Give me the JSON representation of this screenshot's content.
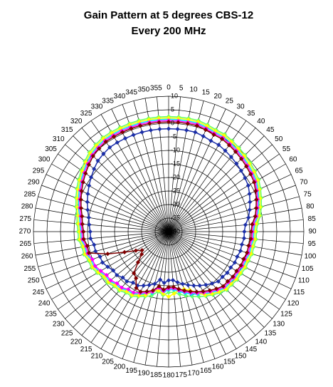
{
  "chart_data": {
    "type": "radar",
    "title": "Gain Pattern at 5 degrees CBS-12",
    "subtitle": "Every 200 MHz",
    "categories": [
      0,
      5,
      10,
      15,
      20,
      25,
      30,
      35,
      40,
      45,
      50,
      55,
      60,
      65,
      70,
      75,
      80,
      85,
      90,
      95,
      100,
      105,
      110,
      115,
      120,
      125,
      130,
      135,
      140,
      145,
      150,
      155,
      160,
      165,
      170,
      175,
      180,
      185,
      190,
      195,
      200,
      205,
      210,
      215,
      220,
      225,
      230,
      235,
      240,
      245,
      250,
      255,
      260,
      265,
      270,
      275,
      280,
      285,
      290,
      295,
      300,
      305,
      310,
      315,
      320,
      325,
      330,
      335,
      340,
      345,
      350,
      355
    ],
    "rlim": [
      -40,
      10
    ],
    "rticks": [
      10,
      5,
      0,
      -5,
      -10,
      -15,
      -20,
      -25,
      -30,
      -35,
      -40
    ],
    "grid": true,
    "series": [
      {
        "color": "#66ff66",
        "values": [
          2.5,
          2.5,
          2.5,
          2.5,
          2,
          1.5,
          1.5,
          1,
          0.5,
          0,
          -0.5,
          -1,
          -1.5,
          -2.5,
          -3.5,
          -4.5,
          -5.5,
          -7,
          -7.5,
          -7.5,
          -8,
          -8,
          -8.5,
          -8.5,
          -9,
          -9,
          -9.5,
          -9.5,
          -10.5,
          -11.5,
          -12.5,
          -13.5,
          -14.5,
          -15.5,
          -16.5,
          -17.5,
          -17.5,
          -16.5,
          -17.5,
          -15.5,
          -14.5,
          -13.5,
          -12.5,
          -12.5,
          -11.5,
          -11.5,
          -10.5,
          -10.5,
          -9.5,
          -8.5,
          -8.5,
          -7.5,
          -7.5,
          -6.5,
          -6.5,
          -6,
          -5.5,
          -4.5,
          -3.5,
          -2.5,
          -1.5,
          -0.5,
          0.5,
          1.5,
          2,
          2.5,
          2.5,
          2.5,
          2.5,
          2.5,
          2.5,
          2.5
        ]
      },
      {
        "color": "#00e5ff",
        "values": [
          1.5,
          1.5,
          1.5,
          1.5,
          1,
          0.5,
          0.5,
          0,
          -0.5,
          -1,
          -1.5,
          -2,
          -2.5,
          -3.5,
          -4.5,
          -5.5,
          -6.5,
          -8,
          -8.5,
          -8.5,
          -9,
          -9,
          -9.5,
          -9.5,
          -10,
          -10,
          -10.5,
          -10.5,
          -11.5,
          -12.5,
          -13.5,
          -14.5,
          -15.5,
          -16.5,
          -17.5,
          -18.5,
          -18.5,
          -17.5,
          -18.5,
          -16.5,
          -15.5,
          -14.5,
          -13.5,
          -13.5,
          -12.5,
          -12.5,
          -11.5,
          -11.5,
          -10.5,
          -9.5,
          -9.5,
          -8.5,
          -8.5,
          -7.5,
          -7.5,
          -7,
          -6.5,
          -5.5,
          -4.5,
          -3.5,
          -2.5,
          -1.5,
          -0.5,
          0.5,
          1,
          1.5,
          1.5,
          1.5,
          1.5,
          1.5,
          1.5,
          1.5
        ]
      },
      {
        "color": "#ffff00",
        "values": [
          2,
          2,
          2,
          2,
          1.5,
          1,
          1,
          0.5,
          0,
          -0.5,
          -1,
          -1.5,
          -2,
          -3,
          -4,
          -5,
          -6,
          -7.5,
          -8,
          -8,
          -8.5,
          -8.5,
          -9,
          -9,
          -9.5,
          -9.5,
          -10,
          -10,
          -11,
          -12,
          -13,
          -15,
          -17,
          -18,
          -18,
          -17,
          -16,
          -17,
          -18,
          -17,
          -15,
          -14,
          -13,
          -13,
          -12,
          -12,
          -11,
          -11,
          -10,
          -9,
          -9,
          -8,
          -8,
          -7,
          -7,
          -6.5,
          -6,
          -5,
          -4,
          -3,
          -2,
          -1,
          0,
          1,
          1.5,
          2,
          2,
          2,
          2,
          2,
          2,
          2
        ]
      },
      {
        "color": "#ff00ff",
        "values": [
          1,
          1,
          1,
          1,
          0.5,
          0,
          0,
          -0.5,
          -1,
          -1.5,
          -2,
          -2.5,
          -3,
          -4,
          -5,
          -6,
          -7,
          -8.5,
          -9,
          -9,
          -9.5,
          -9.5,
          -10,
          -10,
          -10.5,
          -10.5,
          -11,
          -11,
          -12,
          -13,
          -14,
          -15,
          -16,
          -17,
          -18,
          -19,
          -19,
          -18,
          -19,
          -17,
          -16,
          -15,
          -14,
          -14,
          -13,
          -13,
          -12,
          -12,
          -11,
          -10,
          -10,
          -9,
          -9,
          -8,
          -8,
          -7.5,
          -7,
          -6,
          -5,
          -4,
          -3,
          -2,
          -1,
          0,
          0.5,
          1,
          1,
          1,
          1,
          1,
          1,
          1
        ]
      },
      {
        "color": "#1c2fa8",
        "values": [
          -2,
          -2,
          -2,
          -2,
          -2.5,
          -3,
          -3,
          -3.5,
          -4,
          -4.5,
          -5,
          -5.5,
          -6,
          -7,
          -8,
          -9,
          -10,
          -11.5,
          -12,
          -12,
          -12.5,
          -12.5,
          -13,
          -13,
          -13.5,
          -13.5,
          -14,
          -14,
          -15,
          -16,
          -17,
          -18,
          -19,
          -20,
          -21,
          -22,
          -22,
          -21,
          -22,
          -20,
          -19,
          -18,
          -17,
          -17,
          -16,
          -16,
          -15,
          -15,
          -14,
          -13,
          -13,
          -12,
          -12,
          -11,
          -11,
          -10.5,
          -10,
          -9,
          -8,
          -7,
          -6,
          -5,
          -4,
          -3,
          -2.5,
          -2,
          -2,
          -2,
          -2,
          -2,
          -2,
          -2
        ]
      },
      {
        "color": "#800000",
        "values": [
          0.5,
          0.5,
          0.5,
          0.5,
          0,
          -0.5,
          -0.5,
          -1,
          -1.5,
          -2,
          -2.5,
          -3,
          -3.5,
          -4.5,
          -5.5,
          -6.5,
          -7.5,
          -9,
          -9.5,
          -9.5,
          -10,
          -10,
          -10.5,
          -10.5,
          -11,
          -11,
          -11.5,
          -11.5,
          -12.5,
          -13.5,
          -14.5,
          -15.5,
          -16.5,
          -17.5,
          -18.5,
          -19.5,
          -19.5,
          -18.5,
          -19.5,
          -17.5,
          -16.5,
          -15.5,
          -16,
          -19,
          -20,
          -24,
          -27,
          -28,
          -26,
          -22,
          -16,
          -9.5,
          -9.5,
          -8.5,
          -8.5,
          -8,
          -7.5,
          -6.5,
          -5.5,
          -4.5,
          -3.5,
          -2.5,
          -1.5,
          -0.5,
          0,
          0.5,
          0.5,
          0.5,
          0.5,
          0.5,
          0.5,
          0.5
        ]
      }
    ]
  }
}
